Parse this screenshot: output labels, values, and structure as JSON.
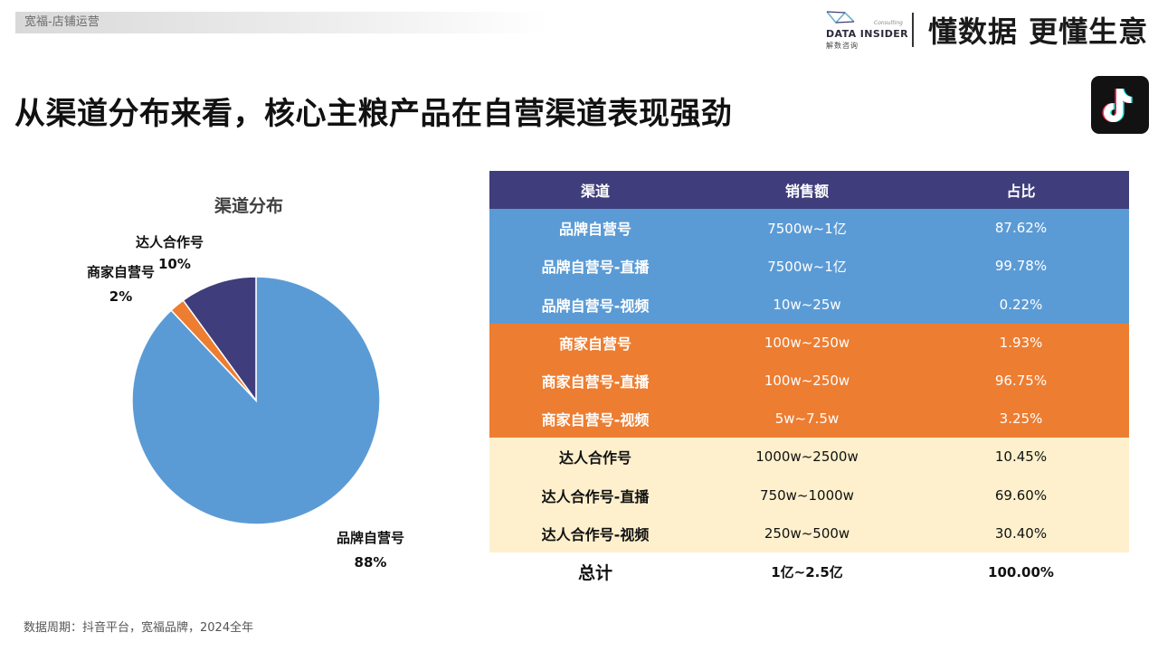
{
  "header": {
    "breadcrumb": "宽福-店铺运营",
    "logo_name": "DATA INSIDER",
    "logo_consult": "Consulting",
    "logo_cn": "解数咨询",
    "slogan": "懂数据 更懂生意"
  },
  "page_title": "从渠道分布来看，核心主粮产品在自营渠道表现强劲",
  "chart_data": {
    "type": "pie",
    "title": "渠道分布",
    "slices": [
      {
        "label": "品牌自营号",
        "value": 88,
        "display": "88%",
        "color": "#5b9bd5"
      },
      {
        "label": "商家自营号",
        "value": 2,
        "display": "2%",
        "color": "#ed7d31"
      },
      {
        "label": "达人合作号",
        "value": 10,
        "display": "10%",
        "color": "#3f3d7b"
      }
    ],
    "start_angle": "12 o'clock",
    "direction": "clockwise, 品牌自营号 first"
  },
  "table": {
    "headers": [
      "渠道",
      "销售额",
      "占比"
    ],
    "rows": [
      {
        "group": "blue",
        "channel": "品牌自营号",
        "sales": "7500w~1亿",
        "share": "87.62%"
      },
      {
        "group": "blue",
        "channel": "品牌自营号-直播",
        "sales": "7500w~1亿",
        "share": "99.78%"
      },
      {
        "group": "blue",
        "channel": "品牌自营号-视频",
        "sales": "10w~25w",
        "share": "0.22%"
      },
      {
        "group": "orange",
        "channel": "商家自营号",
        "sales": "100w~250w",
        "share": "1.93%"
      },
      {
        "group": "orange",
        "channel": "商家自营号-直播",
        "sales": "100w~250w",
        "share": "96.75%"
      },
      {
        "group": "orange",
        "channel": "商家自营号-视频",
        "sales": "5w~7.5w",
        "share": "3.25%"
      },
      {
        "group": "cream",
        "channel": "达人合作号",
        "sales": "1000w~2500w",
        "share": "10.45%"
      },
      {
        "group": "cream",
        "channel": "达人合作号-直播",
        "sales": "750w~1000w",
        "share": "69.60%"
      },
      {
        "group": "cream",
        "channel": "达人合作号-视频",
        "sales": "250w~500w",
        "share": "30.40%"
      }
    ],
    "total": {
      "channel": "总计",
      "sales": "1亿~2.5亿",
      "share": "100.00%"
    }
  },
  "footnote": "数据周期：抖音平台，宽福品牌，2024全年",
  "colors": {
    "blue": "#5b9bd5",
    "orange": "#ed7d31",
    "navy": "#3f3d7b",
    "cream": "#fef0cd"
  },
  "icons": {
    "platform": "tiktok-icon",
    "brand": "data-insider-logo"
  }
}
